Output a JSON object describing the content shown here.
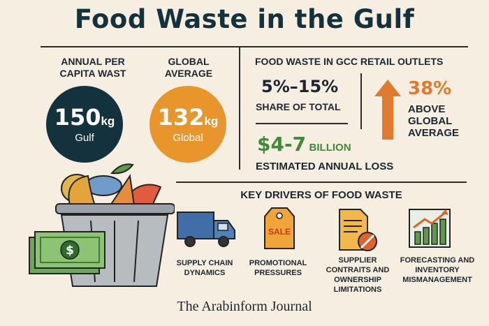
{
  "title": "Food Waste in the Gulf",
  "left": {
    "annual_label": "ANNUAL PER CAPITA WAST",
    "global_label": "GLOBAL AVERAGE",
    "gulf_value": "150",
    "gulf_unit": "kg",
    "gulf_sub": "Gulf",
    "global_value": "132",
    "global_unit": "kg",
    "global_sub": "Global"
  },
  "retail": {
    "heading": "FOOD WASTE IN GCC RETAIL OUTLETS",
    "share_value": "5%–15%",
    "share_label": "SHARE OF TOTAL",
    "loss_value": "$4-7",
    "loss_unit": "BILLION",
    "loss_label": "ESTIMATED ANNUAL LOSS",
    "above_value": "38%",
    "above_label": "ABOVE GLOBAL AVERAGE"
  },
  "drivers": {
    "heading": "KEY DRIVERS OF FOOD WASTE",
    "sale_tag": "SALE",
    "items": [
      {
        "label": "SUPPLY CHAIN DYNAMICS",
        "icon": "truck-icon"
      },
      {
        "label": "PROMOTIONAL PRESSURES",
        "icon": "sale-tag-icon"
      },
      {
        "label": "SUPPLIER CONTRAITS AND OWNERSHIP LIMITATIONS",
        "icon": "contract-icon"
      },
      {
        "label": "FORECASTING AND INVENTORY MISMANAGEMENT",
        "icon": "chart-icon"
      }
    ]
  },
  "footer": "The Arabinform Journal",
  "colors": {
    "background": "#f6eee0",
    "navy": "#14323e",
    "orange": "#e8962c",
    "green": "#3f8a3a",
    "arrow": "#e07a2c"
  }
}
